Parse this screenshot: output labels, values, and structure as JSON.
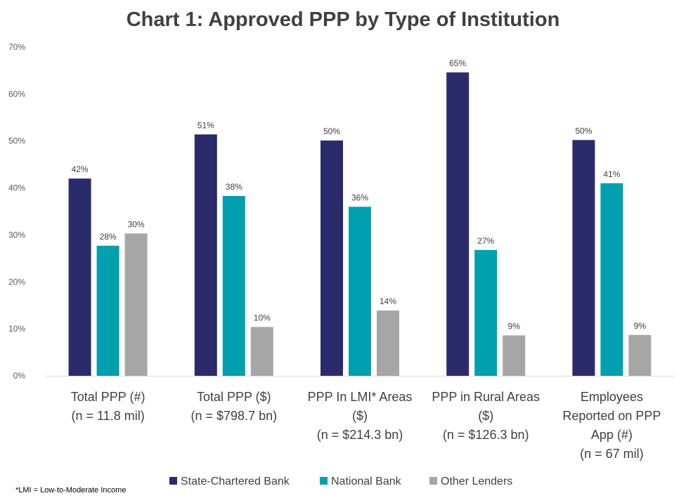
{
  "chart_data": {
    "type": "bar",
    "title": "Chart 1: Approved PPP by Type of Institution",
    "categories": [
      [
        "Total PPP (#)",
        "(n = 11.8 mil)"
      ],
      [
        "Total PPP ($)",
        "(n = $798.7 bn)"
      ],
      [
        "PPP In LMI* Areas",
        "($)",
        "(n = $214.3 bn)"
      ],
      [
        "PPP in Rural Areas",
        "($)",
        "(n = $126.3 bn)"
      ],
      [
        "Employees",
        "Reported on PPP",
        "App (#)",
        "(n = 67 mil)"
      ]
    ],
    "series": [
      {
        "name": "State-Chartered Bank",
        "color": "#2b2b6b",
        "values": [
          42,
          51.4,
          50.1,
          64.6,
          50.2
        ],
        "labels": [
          "42%",
          "51%",
          "50%",
          "65%",
          "50%"
        ]
      },
      {
        "name": "National Bank",
        "color": "#00a0ae",
        "values": [
          27.7,
          38.3,
          36,
          26.8,
          41
        ],
        "labels": [
          "28%",
          "38%",
          "36%",
          "27%",
          "41%"
        ]
      },
      {
        "name": "Other Lenders",
        "color": "#a6a6a6",
        "values": [
          30.3,
          10.4,
          13.9,
          8.6,
          8.7
        ],
        "labels": [
          "30%",
          "10%",
          "14%",
          "9%",
          "9%"
        ]
      }
    ],
    "y_ticks": [
      "0%",
      "10%",
      "20%",
      "30%",
      "40%",
      "50%",
      "60%",
      "70%"
    ],
    "ylim": [
      0,
      70
    ],
    "grid": false,
    "legend_position": "bottom",
    "footnote": "*LMI = Low-to-Moderate Income"
  }
}
